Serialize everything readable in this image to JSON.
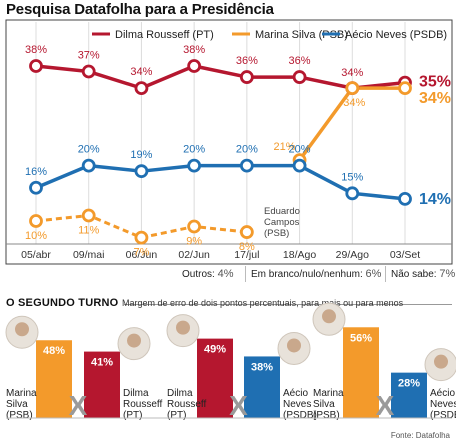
{
  "page": {
    "title": "Pesquisa Datafolha para a Presidência"
  },
  "colors": {
    "dilma": "#b5172f",
    "marina": "#f39a2b",
    "aecio": "#1f6fb2",
    "campos": "#f39a2b"
  },
  "chart_data": [
    {
      "type": "line",
      "title": "Pesquisa Datafolha para a Presidência",
      "categories": [
        "05/abr",
        "09/mai",
        "06/Jun",
        "02/Jun",
        "17/jul",
        "18/Ago",
        "29/Ago",
        "03/Set"
      ],
      "ylim": [
        0,
        40
      ],
      "legend_position": "top",
      "series": [
        {
          "name": "Dilma Rousseff (PT)",
          "color": "#b5172f",
          "values": [
            38,
            37,
            34,
            38,
            36,
            36,
            34,
            35
          ],
          "labels": [
            "38%",
            "37%",
            "34%",
            "38%",
            "36%",
            "36%",
            "34%",
            "35%"
          ]
        },
        {
          "name": "Marina Silva (PSB)",
          "color": "#f39a2b",
          "values": [
            null,
            null,
            null,
            null,
            null,
            21,
            34,
            34
          ],
          "labels": [
            "",
            "",
            "",
            "",
            "",
            "21%",
            "34%",
            "34%"
          ]
        },
        {
          "name": "Aécio Neves (PSDB)",
          "color": "#1f6fb2",
          "values": [
            16,
            20,
            19,
            20,
            20,
            20,
            15,
            14
          ],
          "labels": [
            "16%",
            "20%",
            "19%",
            "20%",
            "20%",
            "20%",
            "15%",
            "14%"
          ]
        },
        {
          "name": "Eduardo Campos (PSB)",
          "color": "#f39a2b",
          "dashed": true,
          "values": [
            10,
            11,
            7,
            9,
            8,
            null,
            null,
            null
          ],
          "labels": [
            "10%",
            "11%",
            "7%",
            "9%",
            "8%",
            "",
            "",
            ""
          ]
        }
      ],
      "annotation": [
        "Eduardo",
        "Campos",
        "(PSB)"
      ]
    },
    {
      "type": "bar",
      "title": "O SEGUNDO TURNO",
      "subtitle": "Margem de erro de dois pontos percentuais, para mais ou para menos",
      "matchups": [
        {
          "left": {
            "name": [
              "Marina",
              "Silva",
              "(PSB)"
            ],
            "value": 48,
            "label": "48%",
            "color": "#f39a2b"
          },
          "right": {
            "name": [
              "Dilma",
              "Rousseff",
              "(PT)"
            ],
            "value": 41,
            "label": "41%",
            "color": "#b5172f"
          }
        },
        {
          "left": {
            "name": [
              "Dilma",
              "Rousseff",
              "(PT)"
            ],
            "value": 49,
            "label": "49%",
            "color": "#b5172f"
          },
          "right": {
            "name": [
              "Aécio",
              "Neves",
              "(PSDB)"
            ],
            "value": 38,
            "label": "38%",
            "color": "#1f6fb2"
          }
        },
        {
          "left": {
            "name": [
              "Marina",
              "Silva",
              "(PSB)"
            ],
            "value": 56,
            "label": "56%",
            "color": "#f39a2b"
          },
          "right": {
            "name": [
              "Aécio",
              "Neves",
              "(PSDB)"
            ],
            "value": 28,
            "label": "28%",
            "color": "#1f6fb2"
          }
        }
      ]
    }
  ],
  "other_votes": {
    "outros_label": "Outros:",
    "outros_value": "4%",
    "branco_label": "Em branco/nulo/nenhum:",
    "branco_value": "6%",
    "naosabe_label": "Não sabe:",
    "naosabe_value": "7%"
  },
  "source": "Fonte: Datafolha"
}
